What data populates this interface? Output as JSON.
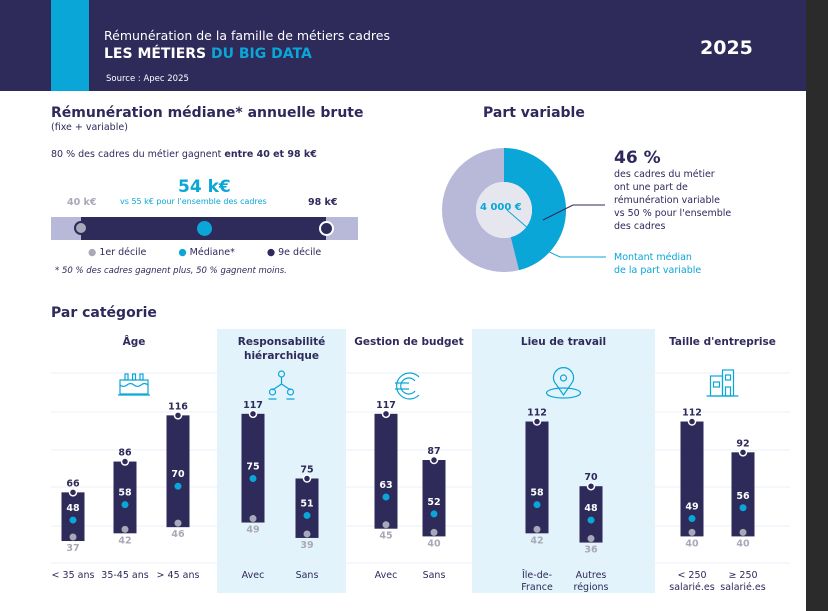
{
  "header": {
    "subtitle": "Rémunération de la famille de métiers cadres",
    "title_a": "LES MÉTIERS",
    "title_b": "DU BIG DATA",
    "source": "Source : Apec 2025",
    "year": "2025"
  },
  "median": {
    "title": "Rémunération médiane* annuelle brute",
    "subtitle": "(fixe + variable)",
    "range_text_a": "80 % des cadres du métier gagnent ",
    "range_text_b": "entre 40 et 98 k€",
    "value": "54 k€",
    "compare": "vs 55 k€ pour l'ensemble des cadres",
    "d1": "40 k€",
    "d9": "98 k€",
    "legend": [
      "1er décile",
      "Médiane*",
      "9e décile"
    ],
    "note": "* 50 % des cadres gagnent plus, 50 % gagnent moins."
  },
  "variable": {
    "title": "Part variable",
    "pct": "46 %",
    "pct_value": 46,
    "desc": [
      "des cadres du métier",
      "ont une part de",
      "rémunération variable",
      "vs 50 % pour l'ensemble",
      "des cadres"
    ],
    "center": "4 000 €",
    "montant": [
      "Montant médian",
      "de la part variable"
    ]
  },
  "colors": {
    "navy": "#2e2a5a",
    "cyan": "#0aa6d8",
    "lavender": "#b8b9d9",
    "grey": "#a9a8b8",
    "panel": "#e3f3fb"
  },
  "categories_title": "Par catégorie",
  "chart_data": {
    "type": "range-bar",
    "title": "Par catégorie",
    "unit": "k€",
    "groups": [
      {
        "name": "Âge",
        "icon": "cake-icon",
        "shaded": false,
        "bars": [
          {
            "label": "< 35 ans",
            "d1": 37,
            "median": 48,
            "d9": 66
          },
          {
            "label": "35-45 ans",
            "d1": 42,
            "median": 58,
            "d9": 86
          },
          {
            "label": "> 45 ans",
            "d1": 46,
            "median": 70,
            "d9": 116
          }
        ]
      },
      {
        "name": "Responsabilité hiérarchique",
        "icon": "hierarchy-icon",
        "shaded": true,
        "bars": [
          {
            "label": "Avec",
            "d1": 49,
            "median": 75,
            "d9": 117
          },
          {
            "label": "Sans",
            "d1": 39,
            "median": 51,
            "d9": 75
          }
        ]
      },
      {
        "name": "Gestion de budget",
        "icon": "euro-icon",
        "shaded": false,
        "bars": [
          {
            "label": "Avec",
            "d1": 45,
            "median": 63,
            "d9": 117
          },
          {
            "label": "Sans",
            "d1": 40,
            "median": 52,
            "d9": 87
          }
        ]
      },
      {
        "name": "Lieu de travail",
        "icon": "location-pin-icon",
        "shaded": true,
        "bars": [
          {
            "label": "Île-de-France",
            "d1": 42,
            "median": 58,
            "d9": 112
          },
          {
            "label": "Autres régions",
            "d1": 36,
            "median": 48,
            "d9": 70
          }
        ]
      },
      {
        "name": "Taille d'entreprise",
        "icon": "building-icon",
        "shaded": false,
        "bars": [
          {
            "label": "< 250 salarié.es",
            "d1": 40,
            "median": 49,
            "d9": 112
          },
          {
            "label": "≥ 250 salarié.es",
            "d1": 40,
            "median": 56,
            "d9": 92
          }
        ]
      }
    ]
  }
}
